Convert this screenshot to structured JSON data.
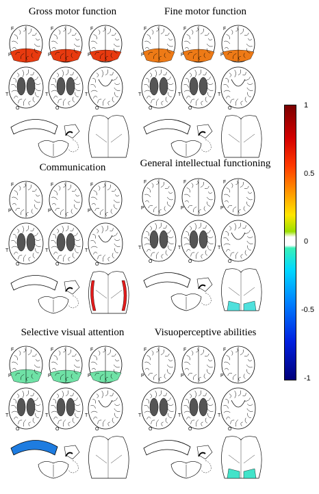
{
  "panels": [
    {
      "title": "Gross motor function",
      "axial": "#e83a0f",
      "cc": "",
      "cereb": ""
    },
    {
      "title": "Fine motor function",
      "axial": "#ee7a16",
      "cc": "",
      "cereb": ""
    },
    {
      "title": "Communication",
      "axial": "",
      "cc": "",
      "cereb": "#e21b1b"
    },
    {
      "title": "General intellectual functioning",
      "axial": "",
      "cc": "",
      "cereb": "#4fe0dc"
    },
    {
      "title": "Selective visual attention",
      "axial": "#6fe2a6",
      "cc": "#1e7ce0",
      "cereb": ""
    },
    {
      "title": "Visuoperceptive abilities",
      "axial": "",
      "cc": "",
      "cereb": "#42e3c9"
    }
  ],
  "slice_labels": {
    "frontal": "F",
    "parietal": "P",
    "occipital": "O",
    "temporal": "T"
  },
  "colorbar": {
    "ticks": [
      "1",
      "0.5",
      "0",
      "-0.5",
      "-1"
    ],
    "min": -1,
    "max": 1
  }
}
